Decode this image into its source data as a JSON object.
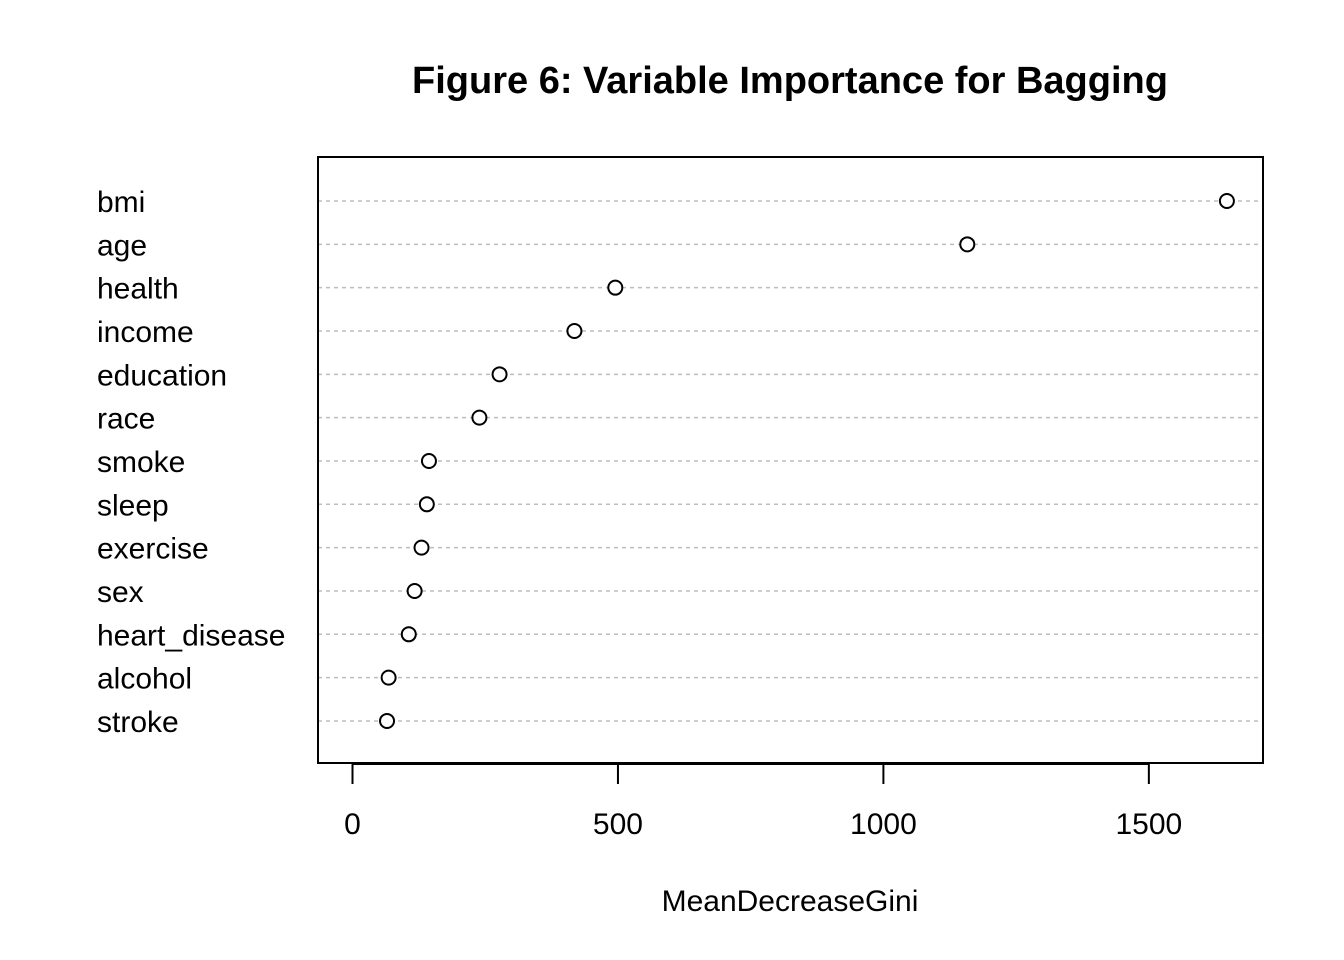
{
  "chart_data": {
    "type": "scatter",
    "title": "Figure 6: Variable Importance for Bagging",
    "xlabel": "MeanDecreaseGini",
    "ylabel": "",
    "xlim": [
      -65,
      1715
    ],
    "xticks": [
      0,
      500,
      1000,
      1500
    ],
    "grid": "horizontal dashed",
    "legend": "none",
    "categories": [
      "bmi",
      "age",
      "health",
      "income",
      "education",
      "race",
      "smoke",
      "sleep",
      "exercise",
      "sex",
      "heart_disease",
      "alcohol",
      "stroke"
    ],
    "values": [
      1647,
      1158,
      495,
      418,
      277,
      239,
      144,
      140,
      130,
      117,
      106,
      68,
      65
    ]
  }
}
